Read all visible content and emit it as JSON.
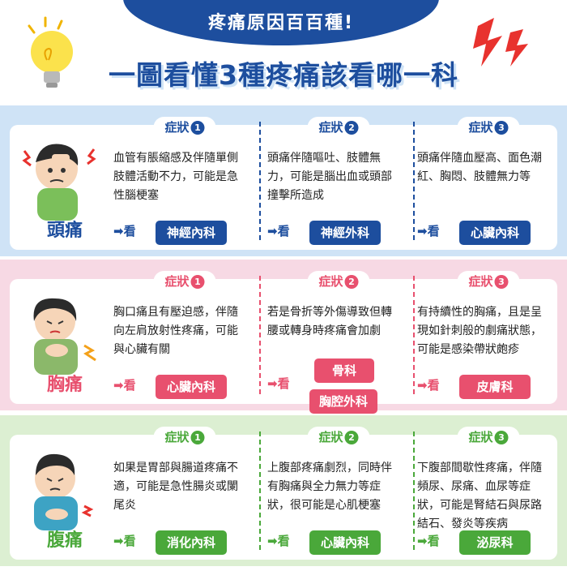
{
  "header": {
    "banner": "疼痛原因百百種!",
    "title": "一圖看懂3種疼痛該看哪一科"
  },
  "colors": {
    "navy": "#1d4e9e",
    "blue_bg": "#cfe3f6",
    "blue_dept": "#1d4e9e",
    "pink_bg": "#f7d9e4",
    "pink_dept": "#e8506e",
    "green_bg": "#dcefd2",
    "green_dept": "#4aa83a"
  },
  "arrow_label": "➡看",
  "symptom_label": "症狀",
  "sections": [
    {
      "organ": "頭痛",
      "cols": [
        {
          "num": "1",
          "desc": "血管有脹縮感及伴隨單側肢體活動不力，可能是急性腦梗塞",
          "depts": [
            "神經內科"
          ]
        },
        {
          "num": "2",
          "desc": "頭痛伴隨嘔吐、肢體無力，可能是腦出血或頭部撞擊所造成",
          "depts": [
            "神經外科"
          ]
        },
        {
          "num": "3",
          "desc": "頭痛伴隨血壓高、面色潮紅、胸悶、肢體無力等",
          "depts": [
            "心臟內科"
          ]
        }
      ]
    },
    {
      "organ": "胸痛",
      "cols": [
        {
          "num": "1",
          "desc": "胸口痛且有壓迫感，伴隨向左肩放射性疼痛，可能與心臟有關",
          "depts": [
            "心臟內科"
          ]
        },
        {
          "num": "2",
          "desc": "若是骨折等外傷導致但轉腰或轉身時疼痛會加劇",
          "depts": [
            "骨科",
            "胸腔外科"
          ]
        },
        {
          "num": "3",
          "desc": "有持續性的胸痛，且是呈現如針刺般的劇痛狀態，可能是感染帶狀皰疹",
          "depts": [
            "皮膚科"
          ]
        }
      ]
    },
    {
      "organ": "腹痛",
      "cols": [
        {
          "num": "1",
          "desc": "如果是胃部與腸道疼痛不適，可能是急性腸炎或闌尾炎",
          "depts": [
            "消化內科"
          ]
        },
        {
          "num": "2",
          "desc": "上腹部疼痛劇烈，同時伴有胸痛與全力無力等症狀，很可能是心肌梗塞",
          "depts": [
            "心臟內科"
          ]
        },
        {
          "num": "3",
          "desc": "下腹部間歇性疼痛，伴隨頻尿、尿痛、血尿等症狀，可能是腎結石與尿路結石、發炎等疾病",
          "depts": [
            "泌尿科"
          ]
        }
      ]
    }
  ]
}
